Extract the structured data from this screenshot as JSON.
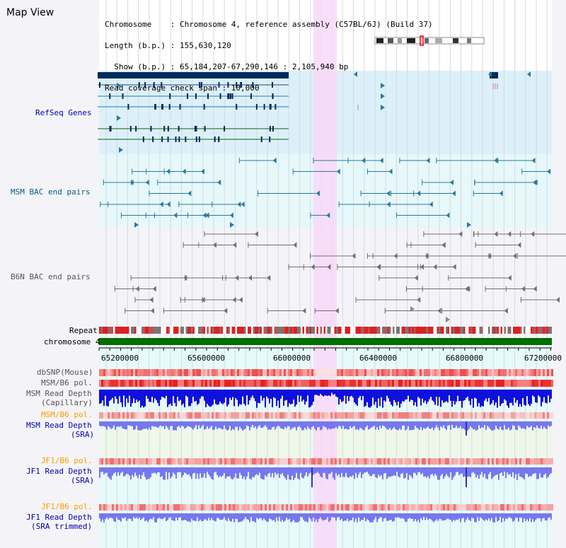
{
  "title": "Map View",
  "info": {
    "chromosome": "Chromosome    : Chromosome 4, reference assembly (C57BL/6J) (Build 37)",
    "length": "Length (b.p.) : 155,630,120",
    "show": "  Show (b.p.) : 65,184,207-67,290,146 : 2,105,940 bp",
    "coverage": "Read coverage check span : 10,000"
  },
  "tracks": {
    "refseq": "RefSeq Genes",
    "msm_bac": "MSM BAC end pairs",
    "b6n_bac": "B6N BAC end pairs",
    "repeat": "Repeat",
    "chromosome": "chromosome 4",
    "dbsnp": "dbSNP(Mouse)",
    "msm_b6_pol": "MSM/B6 pol.",
    "msm_read_depth_1": "MSM Read Depth",
    "msm_read_depth_1b": "(Capillary)",
    "msm_b6_pol_2": "MSM/B6 pol.",
    "msm_read_depth_2": "MSM Read Depth",
    "msm_read_depth_2b": "(SRA)",
    "jf1_b6_pol": "JF1/B6 pol.",
    "jf1_read_depth": "JF1 Read Depth",
    "jf1_read_depth_b": "(SRA)",
    "jf1_b6_pol_2": "JF1/B6 pol.",
    "jf1_read_depth_2": "JF1 Read Depth",
    "jf1_read_depth_2b": "(SRA trimmed)"
  },
  "axis_ticks": [
    "65200000",
    "65600000",
    "66000000",
    "66400000",
    "66800000",
    "67200000"
  ],
  "colors": {
    "blue_label": "#0000aa",
    "teal_label": "#006080",
    "gray_label": "#555555",
    "orange_label": "#ff9900",
    "highlight": "#f8d8f8",
    "chrom_bar": "#007000",
    "depth_blue": "#1010dd",
    "depth_light": "#7777ee"
  }
}
